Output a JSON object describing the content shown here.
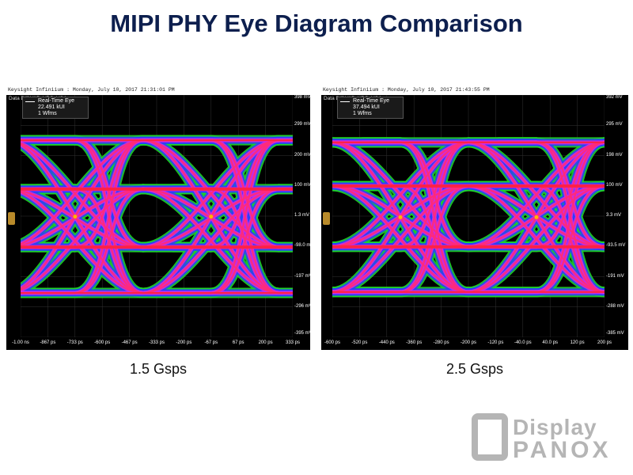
{
  "title": "MIPI PHY Eye Diagram Comparison",
  "chart_data": [
    {
      "type": "eye-diagram",
      "caption": "1.5 Gsps",
      "header": "Keysight Infiniium : Monday, July 10, 2017 21:31:01 PM",
      "source_label": "Data Diff VAB, VBC, VCA",
      "legend": {
        "name": "Real-Time Eye",
        "count": "22.491 kUI",
        "wfms": "1 Wfms"
      },
      "y_ticks": [
        "398 mV",
        "299 mV",
        "200 mV",
        "100 mV",
        "1.3 mV",
        "-98.0 mV",
        "-197 mV",
        "-296 mV",
        "-395 mV"
      ],
      "x_ticks": [
        "-1.00 ns",
        "-867 ps",
        "-733 ps",
        "-600 ps",
        "-467 ps",
        "-333 ps",
        "-200 ps",
        "-67 ps",
        "67 ps",
        "200 ps",
        "333 ps"
      ],
      "ylim": [
        -395,
        398
      ],
      "xlim": [
        -1000,
        333
      ],
      "levels_mV": [
        250,
        90,
        -100,
        -250
      ],
      "crossings_ps": [
        -733,
        -67
      ],
      "colors": {
        "outer": "#1fd12a",
        "mid": "#2a3cff",
        "inner": "#d02be0",
        "core": "#ff2a78",
        "hot": "#ffb300"
      }
    },
    {
      "type": "eye-diagram",
      "caption": "2.5 Gsps",
      "header": "Keysight Infiniium : Monday, July 10, 2017 21:43:55 PM",
      "source_label": "Data Diff VAB, VBC, VCA",
      "legend": {
        "name": "Real-Time Eye",
        "count": "37.494 kUI",
        "wfms": "1 Wfms"
      },
      "y_ticks": [
        "392 mV",
        "295 mV",
        "198 mV",
        "100 mV",
        "3.3 mV",
        "-93.5 mV",
        "-191 mV",
        "-288 mV",
        "-385 mV"
      ],
      "x_ticks": [
        "-600 ps",
        "-520 ps",
        "-440 ps",
        "-360 ps",
        "-280 ps",
        "-200 ps",
        "-120 ps",
        "-40.0 ps",
        "40.0 ps",
        "120 ps",
        "200 ps"
      ],
      "ylim": [
        -385,
        392
      ],
      "xlim": [
        -600,
        200
      ],
      "levels_mV": [
        240,
        100,
        -95,
        -240
      ],
      "crossings_ps": [
        -400,
        0
      ],
      "colors": {
        "outer": "#1fd12a",
        "mid": "#2a3cff",
        "inner": "#d02be0",
        "core": "#ff2a78",
        "hot": "#ffb300"
      }
    }
  ],
  "watermark": {
    "line1": "Display",
    "line2": "PANOX"
  }
}
